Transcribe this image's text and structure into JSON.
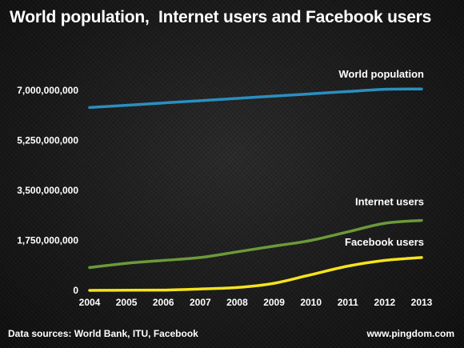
{
  "title": "World population,  Internet users and Facebook users",
  "footer": {
    "sources": "Data sources: World Bank, ITU, Facebook",
    "site": "www.pingdom.com"
  },
  "chart_data": {
    "type": "line",
    "title": "World population,  Internet users and Facebook users",
    "x": [
      2004,
      2005,
      2006,
      2007,
      2008,
      2009,
      2010,
      2011,
      2012,
      2013
    ],
    "x_tick_labels": [
      "2004",
      "2005",
      "2006",
      "2007",
      "2008",
      "2009",
      "2010",
      "2011",
      "2012",
      "2013"
    ],
    "ylim": [
      0,
      7000000000
    ],
    "y_ticks": [
      0,
      1750000000,
      3500000000,
      5250000000,
      7000000000
    ],
    "y_tick_labels": [
      "0",
      "1,750,000,000",
      "3,500,000,000",
      "5,250,000,000",
      "7,000,000,000"
    ],
    "grid": false,
    "series": [
      {
        "name": "World population",
        "color": "#2a8fc0",
        "values": [
          6400000000,
          6480000000,
          6560000000,
          6640000000,
          6720000000,
          6800000000,
          6880000000,
          6960000000,
          7040000000,
          7050000000
        ]
      },
      {
        "name": "Internet users",
        "color": "#6b9a3a",
        "values": [
          800000000,
          950000000,
          1050000000,
          1150000000,
          1350000000,
          1550000000,
          1750000000,
          2050000000,
          2350000000,
          2450000000
        ]
      },
      {
        "name": "Facebook users",
        "color": "#f5e31e",
        "values": [
          1000000,
          5500000,
          12000000,
          50000000,
          100000000,
          250000000,
          550000000,
          850000000,
          1050000000,
          1150000000
        ]
      }
    ]
  }
}
